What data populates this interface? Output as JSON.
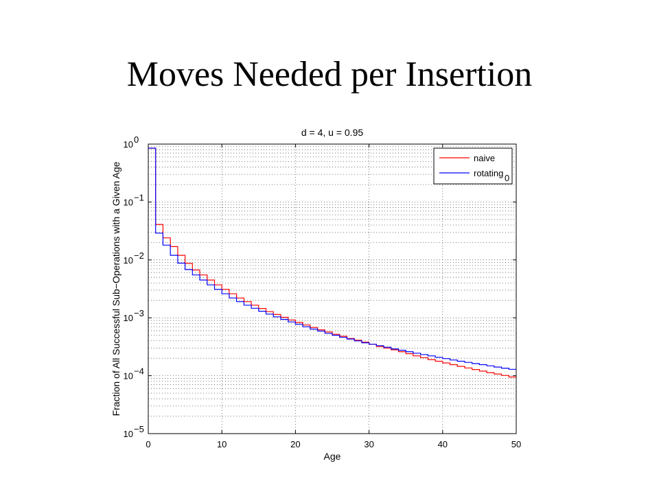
{
  "slide": {
    "title": "Moves Needed per Insertion"
  },
  "chart_data": {
    "type": "line",
    "step": true,
    "title": "d = 4, u = 0.95",
    "xlabel": "Age",
    "ylabel": "Fraction of All Successful Sub−Operations with a Given Age",
    "xlim": [
      0,
      50
    ],
    "ylim": [
      1e-05,
      1
    ],
    "yscale": "log",
    "xticks": [
      0,
      10,
      20,
      30,
      40,
      50
    ],
    "ytick_bases": [
      "10",
      "10",
      "10",
      "10",
      "10",
      "10"
    ],
    "ytick_exponents": [
      "0",
      "−1",
      "−2",
      "−3",
      "−4",
      "−5"
    ],
    "ytick_values": [
      1,
      0.1,
      0.01,
      0.001,
      0.0001,
      1e-05
    ],
    "grid": true,
    "grid_style": "dotted",
    "legend_position": "top-right",
    "stray_label": "0",
    "series": [
      {
        "name": "naive",
        "color": "#ff0000",
        "x": [
          0,
          1,
          2,
          3,
          4,
          5,
          6,
          7,
          8,
          9,
          10,
          11,
          12,
          13,
          14,
          15,
          16,
          17,
          18,
          19,
          20,
          21,
          22,
          23,
          24,
          25,
          26,
          27,
          28,
          29,
          30,
          31,
          32,
          33,
          34,
          35,
          36,
          37,
          38,
          39,
          40,
          41,
          42,
          43,
          44,
          45,
          46,
          47,
          48,
          49,
          50
        ],
        "values": [
          0.85,
          0.041,
          0.024,
          0.017,
          0.012,
          0.0087,
          0.0067,
          0.0055,
          0.0045,
          0.0037,
          0.0031,
          0.0026,
          0.0022,
          0.0019,
          0.00165,
          0.00145,
          0.00128,
          0.00114,
          0.00102,
          0.00092,
          0.00083,
          0.00075,
          0.00068,
          0.00062,
          0.00057,
          0.00052,
          0.00048,
          0.00044,
          0.00041,
          0.00038,
          0.00035,
          0.00032,
          0.0003,
          0.00028,
          0.00026,
          0.00024,
          0.00022,
          0.000205,
          0.00019,
          0.000178,
          0.000166,
          0.000155,
          0.000145,
          0.000136,
          0.000128,
          0.00012,
          0.000113,
          0.000107,
          0.000101,
          9.5e-05,
          9.5e-05
        ]
      },
      {
        "name": "rotating",
        "color": "#0000ff",
        "x": [
          0,
          1,
          2,
          3,
          4,
          5,
          6,
          7,
          8,
          9,
          10,
          11,
          12,
          13,
          14,
          15,
          16,
          17,
          18,
          19,
          20,
          21,
          22,
          23,
          24,
          25,
          26,
          27,
          28,
          29,
          30,
          31,
          32,
          33,
          34,
          35,
          36,
          37,
          38,
          39,
          40,
          41,
          42,
          43,
          44,
          45,
          46,
          47,
          48,
          49,
          50
        ],
        "values": [
          0.85,
          0.029,
          0.018,
          0.012,
          0.0088,
          0.0068,
          0.0055,
          0.0045,
          0.0037,
          0.0031,
          0.0026,
          0.0022,
          0.0019,
          0.00165,
          0.00146,
          0.0013,
          0.00116,
          0.00104,
          0.00094,
          0.00085,
          0.00077,
          0.0007,
          0.00064,
          0.00059,
          0.00054,
          0.0005,
          0.00046,
          0.00043,
          0.0004,
          0.00037,
          0.00035,
          0.00033,
          0.00031,
          0.00029,
          0.000275,
          0.00026,
          0.000245,
          0.000232,
          0.00022,
          0.000208,
          0.000197,
          0.000187,
          0.000178,
          0.00017,
          0.000162,
          0.000155,
          0.000148,
          0.000141,
          0.000135,
          0.000129,
          0.000129
        ]
      }
    ]
  }
}
